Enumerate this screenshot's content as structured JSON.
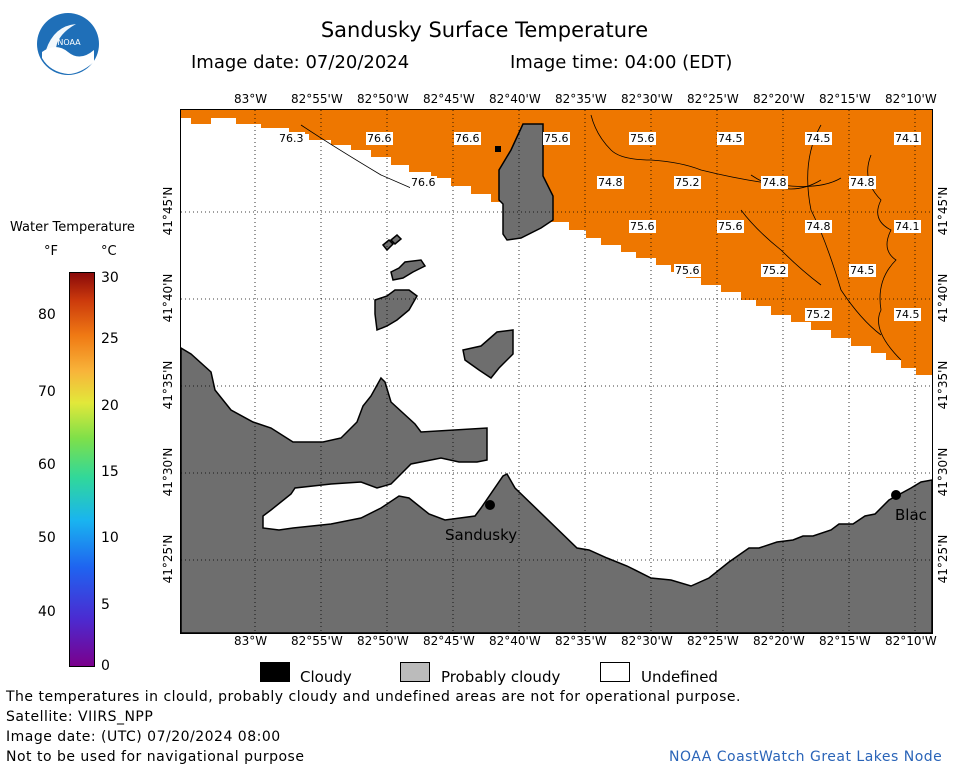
{
  "header": {
    "title": "Sandusky Surface Temperature",
    "date_text": "Image date: 07/20/2024",
    "time_text": "Image time: 04:00 (EDT)",
    "logo_text": "NOAA"
  },
  "colorbar": {
    "title": "Water Temperature",
    "unit_f": "°F",
    "unit_c": "°C",
    "f_ticks": [
      "80",
      "70",
      "60",
      "50",
      "40"
    ],
    "c_ticks": [
      "30",
      "25",
      "20",
      "15",
      "10",
      "5",
      "0"
    ]
  },
  "map": {
    "lon_labels": [
      "83°W",
      "82°55'W",
      "82°50'W",
      "82°45'W",
      "82°40'W",
      "82°35'W",
      "82°30'W",
      "82°25'W",
      "82°20'W",
      "82°15'W",
      "82°10'W"
    ],
    "lat_labels": [
      "41°45'N",
      "41°40'N",
      "41°35'N",
      "41°30'N",
      "41°25'N"
    ],
    "temperatures": [
      "76.3",
      "76.6",
      "76.6",
      "75.6",
      "75.6",
      "74.5",
      "74.5",
      "74.1",
      "76.6",
      "74.8",
      "75.2",
      "74.8",
      "74.8",
      "75.6",
      "75.6",
      "74.8",
      "74.1",
      "75.6",
      "75.2",
      "74.5",
      "75.2",
      "74.5"
    ],
    "places": [
      "Sandusky",
      "Blac"
    ],
    "colors": {
      "water": "#ee7700",
      "land": "#6e6e6e",
      "undefined": "#ffffff",
      "cloudy": "#000000",
      "probably_cloudy": "#bbbbbb"
    }
  },
  "legend": {
    "cloudy": "Cloudy",
    "probably_cloudy": "Probably cloudy",
    "undefined": "Undefined"
  },
  "footer": {
    "disclaimer": "The temperatures in clould, probably cloudy and undefined areas are not for operational purpose.",
    "satellite": "Satellite: VIIRS_NPP",
    "utc_date": "Image date: (UTC) 07/20/2024  08:00",
    "nav_warning": "Not to be used for navigational purpose",
    "credit": "NOAA CoastWatch Great Lakes Node"
  }
}
